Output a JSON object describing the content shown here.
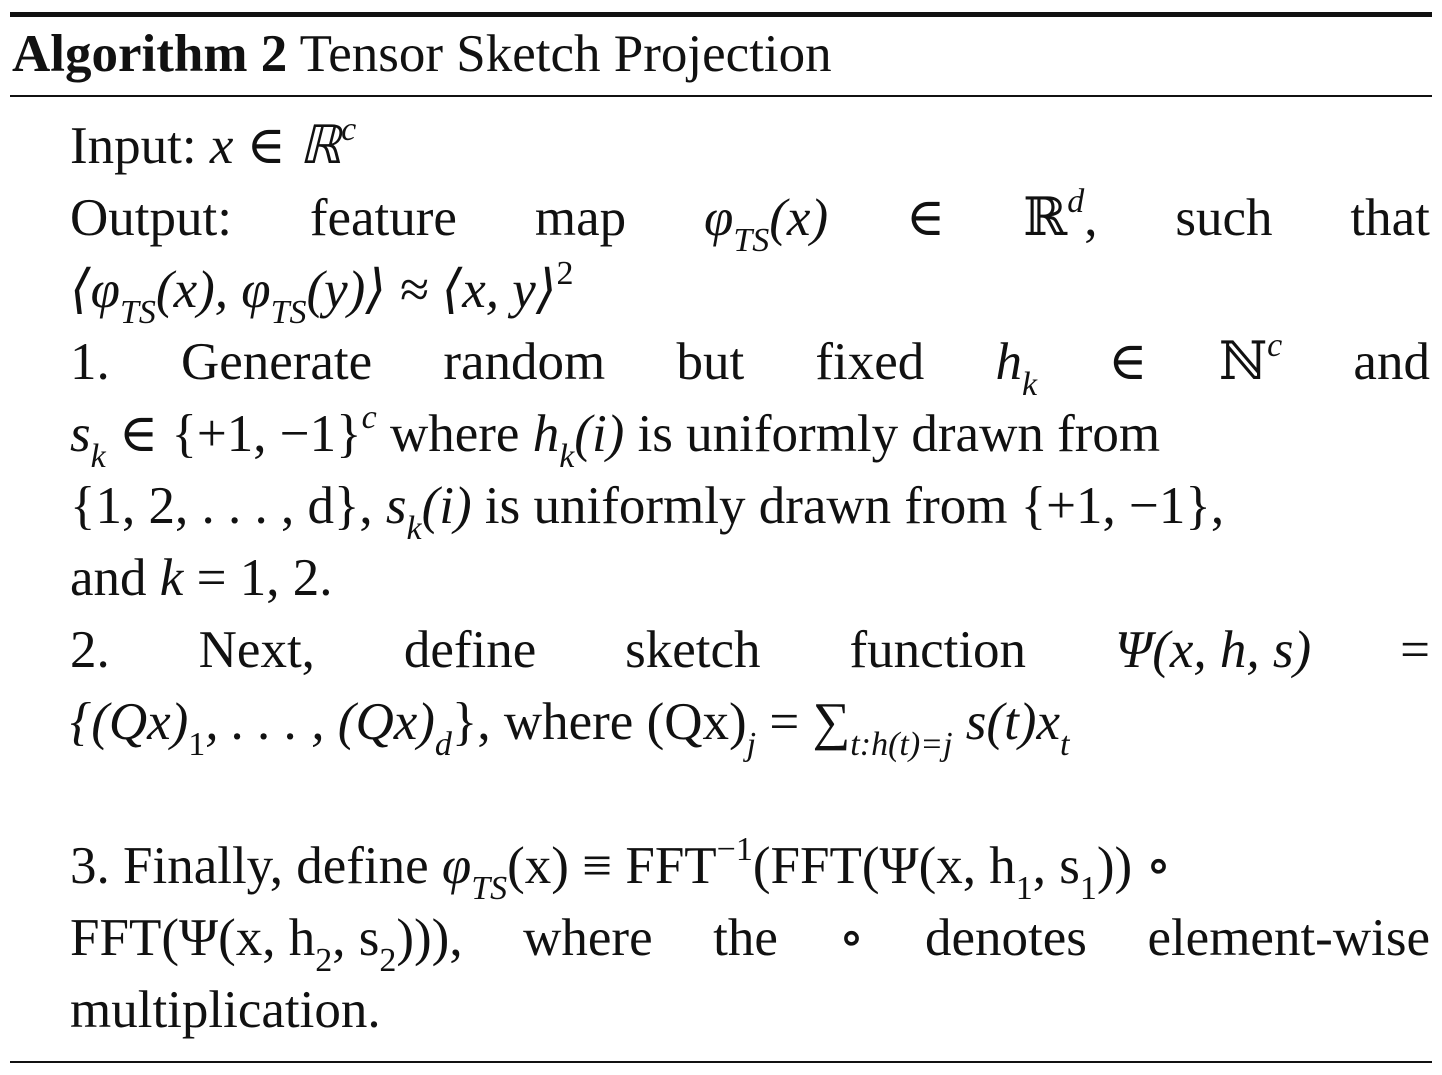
{
  "algorithm": {
    "label": "Algorithm 2",
    "title": "Tensor Sketch Projection"
  },
  "lines": {
    "input": [
      "Input:",
      "x ∈ ℝ",
      "c"
    ],
    "output_words": [
      "Output:",
      "feature",
      "map",
      "φ",
      "TS",
      "(x)",
      "∈",
      "ℝ",
      "d",
      ",",
      "such",
      "that"
    ],
    "output_cont": [
      "⟨φ",
      "TS",
      "(x), φ",
      "TS",
      "(y)⟩ ≈ ⟨x, y⟩",
      "2"
    ],
    "step1_a": [
      "1.",
      "Generate",
      "random",
      "but",
      "fixed",
      "h",
      "k",
      "∈",
      "ℕ",
      "c",
      "and"
    ],
    "step1_b": [
      "s",
      "k",
      " ∈ {+1, −1}",
      "c",
      " where ",
      "h",
      "k",
      "(i)",
      " is uniformly drawn from"
    ],
    "step1_c": [
      "{1, 2, . . . , d}, ",
      "s",
      "k",
      "(i)",
      " is uniformly drawn from {+1, −1},"
    ],
    "step1_d": [
      "and ",
      "k",
      " = 1, 2."
    ],
    "step2_a": [
      "2.",
      "Next,",
      "define",
      "sketch",
      "function",
      "Ψ(x, h, s)",
      "="
    ],
    "step2_b": [
      "{(Qx)",
      "1",
      ", . . . , (Qx)",
      "d",
      "}, where (Qx)",
      "j",
      " = ∑",
      "t:h(t)=j",
      " s(t)x",
      "t"
    ],
    "step3_a": [
      "3. Finally, define ",
      "φ",
      "TS",
      "(x) ≡ FFT",
      "−1",
      "(FFT(Ψ(x, h",
      "1",
      ", s",
      "1",
      ")) ∘"
    ],
    "step3_b": [
      "FFT(Ψ(x, h",
      "2",
      ", s",
      "2",
      "))),",
      "where",
      "the",
      "∘",
      "denotes",
      "element-wise"
    ],
    "step3_c": [
      "multiplication."
    ]
  }
}
